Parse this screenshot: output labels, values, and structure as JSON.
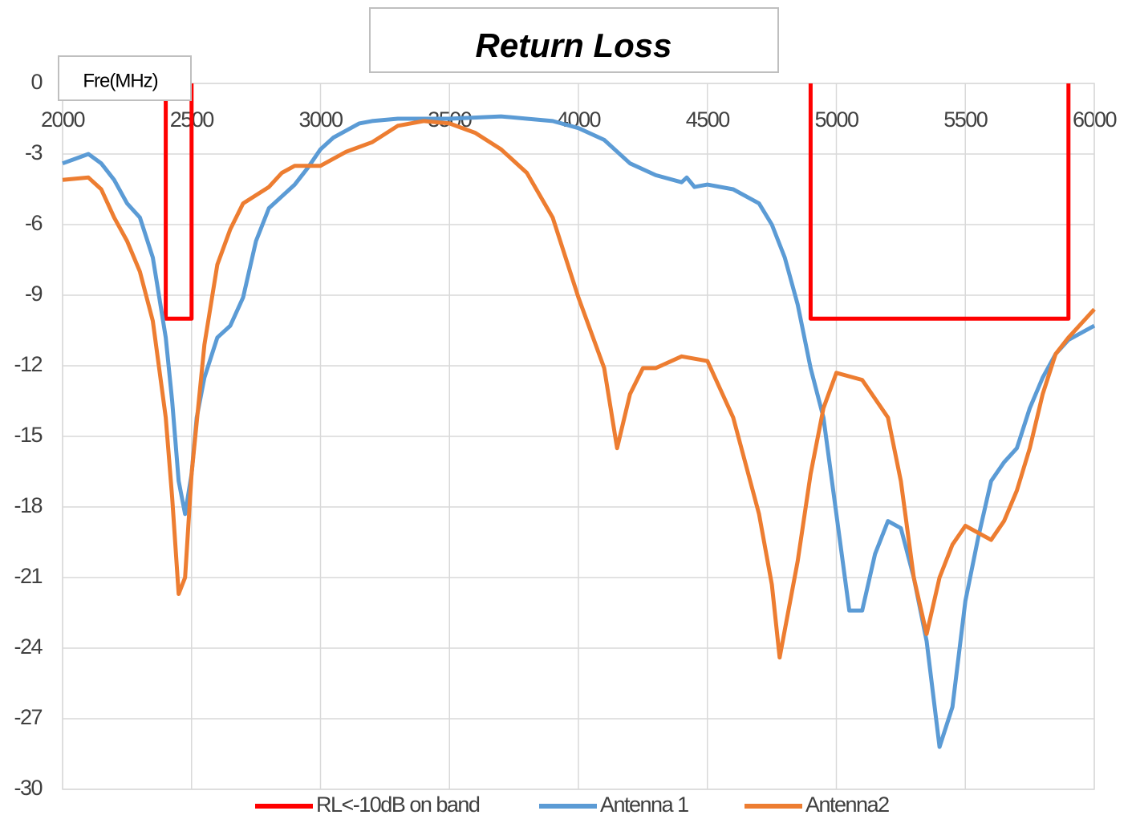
{
  "chart_data": {
    "type": "line",
    "title": "Return Loss",
    "xlabel": "Fre(MHz)",
    "xlim": [
      2000,
      6000
    ],
    "xticks": [
      2000,
      2500,
      3000,
      3500,
      4000,
      4500,
      5000,
      5500,
      6000
    ],
    "ylim": [
      -30,
      0
    ],
    "yticks": [
      0,
      -3,
      -6,
      -9,
      -12,
      -15,
      -18,
      -21,
      -24,
      -27,
      -30
    ],
    "grid": true,
    "legend": "bottom",
    "series": [
      {
        "name": "RL<-10dB on band",
        "color": "#ff0000",
        "x": [
          2400,
          2400,
          2500,
          2500,
          null,
          4900,
          4900,
          5900,
          5900
        ],
        "values": [
          0,
          -10,
          -10,
          0,
          null,
          0,
          -10,
          -10,
          0
        ]
      },
      {
        "name": "Antenna 1",
        "color": "#5b9bd5",
        "x": [
          2000,
          2050,
          2100,
          2150,
          2200,
          2250,
          2300,
          2350,
          2400,
          2425,
          2450,
          2475,
          2500,
          2520,
          2550,
          2600,
          2650,
          2700,
          2750,
          2800,
          2850,
          2900,
          2950,
          3000,
          3050,
          3100,
          3150,
          3200,
          3300,
          3500,
          3700,
          3800,
          3900,
          4000,
          4100,
          4200,
          4300,
          4400,
          4420,
          4450,
          4500,
          4600,
          4700,
          4750,
          4800,
          4850,
          4900,
          4950,
          5000,
          5050,
          5100,
          5150,
          5200,
          5250,
          5300,
          5350,
          5400,
          5450,
          5500,
          5550,
          5600,
          5650,
          5700,
          5750,
          5800,
          5850,
          5900,
          6000
        ],
        "values": [
          -3.4,
          -3.2,
          -3.0,
          -3.4,
          -4.1,
          -5.1,
          -5.7,
          -7.4,
          -10.8,
          -13.5,
          -16.9,
          -18.3,
          -16.6,
          -14.2,
          -12.5,
          -10.8,
          -10.3,
          -9.1,
          -6.7,
          -5.3,
          -4.8,
          -4.3,
          -3.6,
          -2.8,
          -2.3,
          -2.0,
          -1.7,
          -1.6,
          -1.5,
          -1.5,
          -1.4,
          -1.5,
          -1.6,
          -1.9,
          -2.4,
          -3.4,
          -3.9,
          -4.2,
          -4.0,
          -4.4,
          -4.3,
          -4.5,
          -5.1,
          -6.0,
          -7.4,
          -9.4,
          -12.1,
          -14.2,
          -18.3,
          -22.4,
          -22.4,
          -20.0,
          -18.6,
          -18.9,
          -21.0,
          -23.7,
          -28.2,
          -26.5,
          -22.0,
          -19.3,
          -16.9,
          -16.1,
          -15.5,
          -13.8,
          -12.5,
          -11.5,
          -10.9,
          -10.3
        ]
      },
      {
        "name": "Antenna2",
        "color": "#ed7d31",
        "x": [
          2000,
          2100,
          2150,
          2200,
          2250,
          2300,
          2350,
          2400,
          2425,
          2450,
          2475,
          2500,
          2550,
          2600,
          2650,
          2700,
          2800,
          2850,
          2900,
          3000,
          3100,
          3200,
          3300,
          3400,
          3500,
          3600,
          3700,
          3800,
          3900,
          4000,
          4100,
          4150,
          4200,
          4250,
          4300,
          4400,
          4500,
          4600,
          4700,
          4750,
          4780,
          4850,
          4900,
          4950,
          5000,
          5100,
          5200,
          5250,
          5300,
          5350,
          5400,
          5450,
          5500,
          5600,
          5650,
          5700,
          5750,
          5800,
          5850,
          5900,
          6000
        ],
        "values": [
          -4.1,
          -4.0,
          -4.5,
          -5.7,
          -6.7,
          -8.0,
          -10.1,
          -14.2,
          -17.6,
          -21.7,
          -21.0,
          -16.6,
          -11.1,
          -7.7,
          -6.2,
          -5.1,
          -4.4,
          -3.8,
          -3.5,
          -3.5,
          -2.9,
          -2.5,
          -1.8,
          -1.6,
          -1.7,
          -2.1,
          -2.8,
          -3.8,
          -5.7,
          -9.1,
          -12.1,
          -15.5,
          -13.2,
          -12.1,
          -12.1,
          -11.6,
          -11.8,
          -14.2,
          -18.3,
          -21.3,
          -24.4,
          -20.3,
          -16.6,
          -13.8,
          -12.3,
          -12.6,
          -14.2,
          -16.9,
          -21.0,
          -23.4,
          -21.0,
          -19.6,
          -18.8,
          -19.4,
          -18.6,
          -17.3,
          -15.5,
          -13.2,
          -11.5,
          -10.8,
          -9.6
        ]
      }
    ]
  }
}
